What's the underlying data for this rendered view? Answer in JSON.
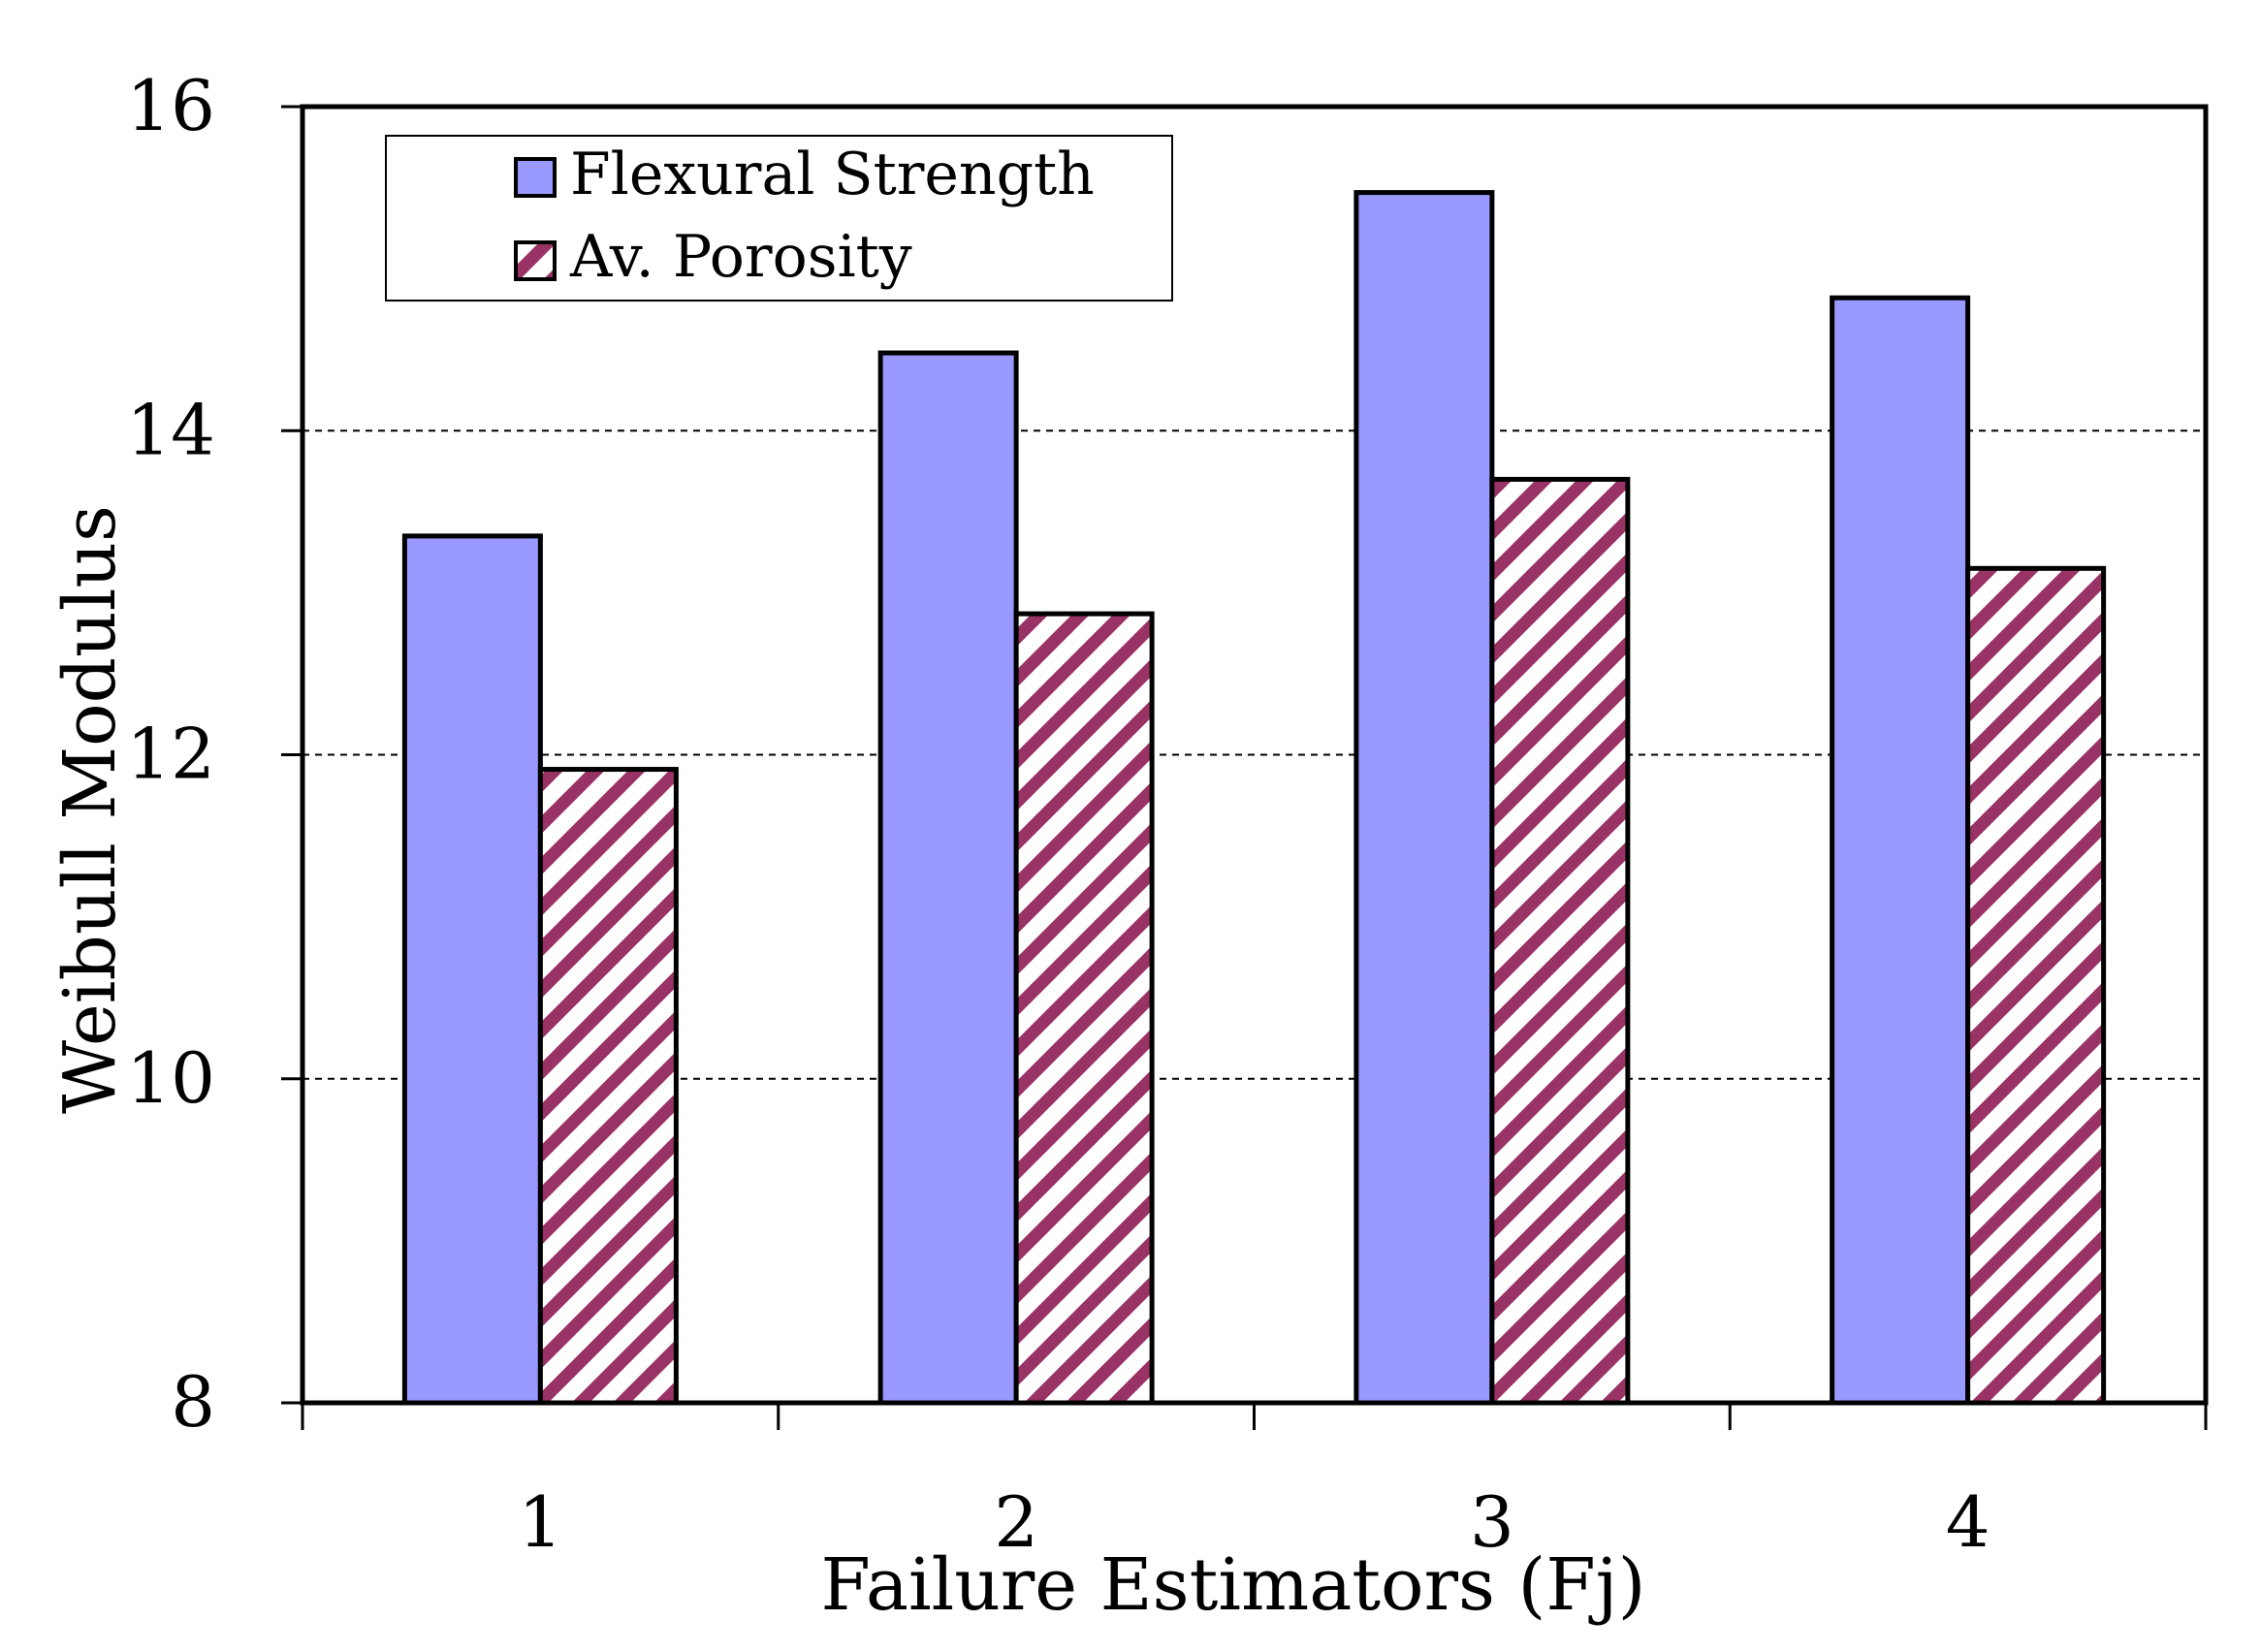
{
  "chart_data": {
    "type": "bar",
    "title": "",
    "xlabel": "Failure Estimators (Fj)",
    "ylabel": "Weibull Modulus",
    "categories": [
      "1",
      "2",
      "3",
      "4"
    ],
    "ylim": [
      8,
      16
    ],
    "yticks": [
      8,
      10,
      12,
      14,
      16
    ],
    "ytick_labels": [
      "8",
      "10",
      "12",
      "14",
      "16"
    ],
    "grid": "dashed horizontal",
    "legend_position": "top-left",
    "series": [
      {
        "name": "Flexural Strength",
        "values": [
          13.35,
          14.48,
          15.47,
          14.82
        ],
        "color": "#9999ff",
        "pattern": "solid"
      },
      {
        "name": "Av. Porosity",
        "values": [
          11.91,
          12.87,
          13.7,
          13.15
        ],
        "color": "#993366",
        "pattern": "diagonal-stripes"
      }
    ]
  }
}
